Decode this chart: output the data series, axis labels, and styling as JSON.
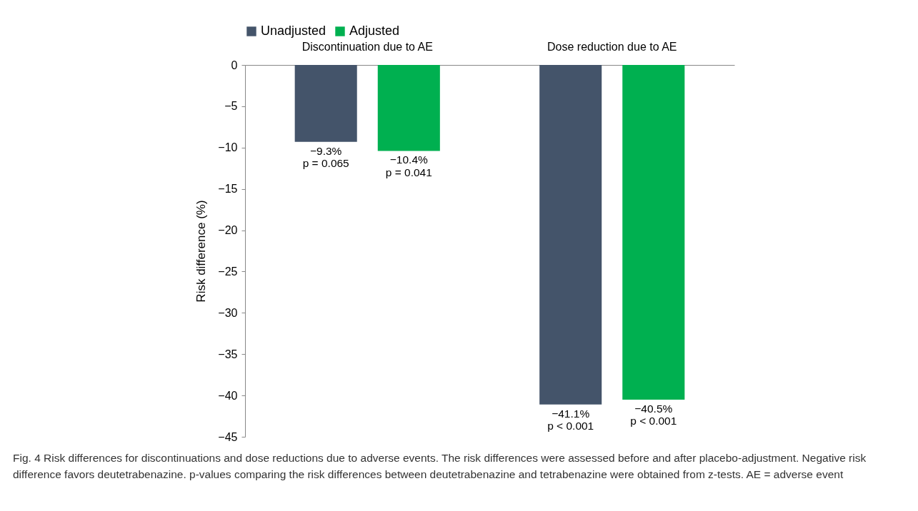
{
  "chart_data": {
    "type": "bar",
    "categories": [
      "Discontinuation due to AE",
      "Dose reduction due to AE"
    ],
    "series": [
      {
        "name": "Unadjusted",
        "color": "#44546a",
        "values": [
          -9.3,
          -41.1
        ],
        "value_labels": [
          "−9.3%\np = 0.065",
          "−41.1%\np < 0.001"
        ]
      },
      {
        "name": "Adjusted",
        "color": "#00b050",
        "values": [
          -10.4,
          -40.5
        ],
        "value_labels": [
          "−10.4%\np = 0.041",
          "−40.5%\np < 0.001"
        ]
      }
    ],
    "ylabel": "Risk difference (%)",
    "ylim": [
      -45,
      0
    ],
    "yticks": [
      0,
      -5,
      -10,
      -15,
      -20,
      -25,
      -30,
      -35,
      -40,
      -45
    ],
    "grid": false,
    "legend": "top",
    "annotations": [
      "Fig. 4 Risk differences for discontinuations and dose reductions due to adverse events. The risk differences were assessed before and after placebo-adjustment. Negative risk difference favors deutetrabenazine. p-values comparing the risk differences between deutetrabenazine and tetrabenazine were obtained from z-tests. AE = adverse event"
    ]
  }
}
